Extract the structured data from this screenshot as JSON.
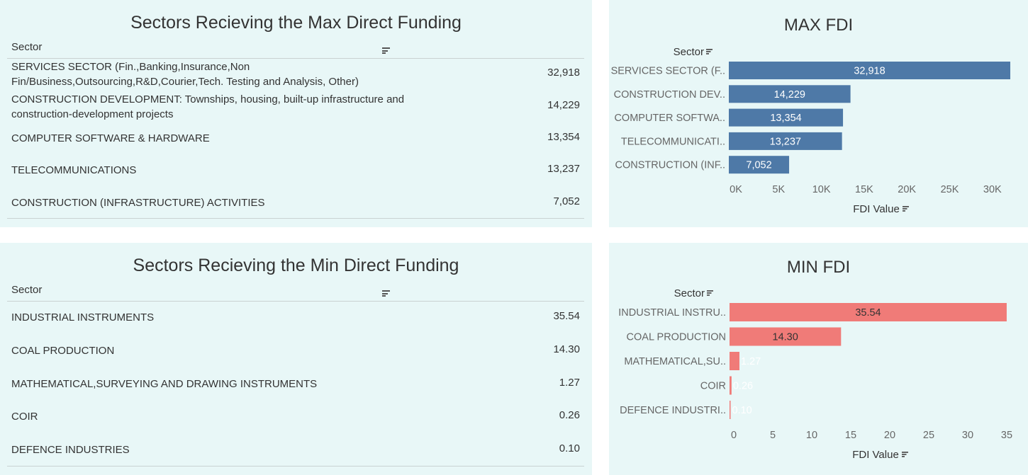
{
  "max_table": {
    "title": "Sectors Recieving the Max Direct Funding",
    "column_header": "Sector",
    "rows": [
      {
        "sector": "SERVICES SECTOR (Fin.,Banking,Insurance,Non Fin/Business,Outsourcing,R&D,Courier,Tech. Testing and Analysis, Other)",
        "value": "32,918"
      },
      {
        "sector": "CONSTRUCTION DEVELOPMENT: Townships, housing, built-up infrastructure and construction-development projects",
        "value": "14,229"
      },
      {
        "sector": "COMPUTER SOFTWARE & HARDWARE",
        "value": "13,354"
      },
      {
        "sector": "TELECOMMUNICATIONS",
        "value": "13,237"
      },
      {
        "sector": "CONSTRUCTION (INFRASTRUCTURE) ACTIVITIES",
        "value": "7,052"
      }
    ]
  },
  "min_table": {
    "title": "Sectors Recieving the Min Direct Funding",
    "column_header": "Sector",
    "rows": [
      {
        "sector": "INDUSTRIAL INSTRUMENTS",
        "value": "35.54"
      },
      {
        "sector": "COAL PRODUCTION",
        "value": "14.30"
      },
      {
        "sector": "MATHEMATICAL,SURVEYING AND DRAWING INSTRUMENTS",
        "value": "1.27"
      },
      {
        "sector": "COIR",
        "value": "0.26"
      },
      {
        "sector": "DEFENCE INDUSTRIES",
        "value": "0.10"
      }
    ]
  },
  "chart_data": [
    {
      "type": "bar",
      "orientation": "horizontal",
      "title": "MAX FDI",
      "ylabel": "Sector",
      "xlabel": "FDI Value",
      "categories": [
        "SERVICES SECTOR (F..",
        "CONSTRUCTION DEV..",
        "COMPUTER SOFTWA..",
        "TELECOMMUNICATI..",
        "CONSTRUCTION (INF.."
      ],
      "values": [
        32918,
        14229,
        13354,
        13237,
        7052
      ],
      "data_labels": [
        "32,918",
        "14,229",
        "13,354",
        "13,237",
        "7,052"
      ],
      "xlim": [
        0,
        33000
      ],
      "xticks": [
        0,
        5000,
        10000,
        15000,
        20000,
        25000,
        30000
      ],
      "xtick_labels": [
        "0K",
        "5K",
        "10K",
        "15K",
        "20K",
        "25K",
        "30K"
      ],
      "bar_color": "#4e79a7",
      "label_color": "#ffffff",
      "grid": false
    },
    {
      "type": "bar",
      "orientation": "horizontal",
      "title": "MIN FDI",
      "ylabel": "Sector",
      "xlabel": "FDI Value",
      "categories": [
        "INDUSTRIAL INSTRU..",
        "COAL PRODUCTION",
        "MATHEMATICAL,SU..",
        "COIR",
        "DEFENCE INDUSTRI.."
      ],
      "values": [
        35.54,
        14.3,
        1.27,
        0.26,
        0.1
      ],
      "data_labels": [
        "35.54",
        "14.30",
        "1.27",
        "0.26",
        "0.10"
      ],
      "xlim": [
        0,
        36
      ],
      "xticks": [
        0,
        5,
        10,
        15,
        20,
        25,
        30,
        35
      ],
      "xtick_labels": [
        "0",
        "5",
        "10",
        "15",
        "20",
        "25",
        "30",
        "35"
      ],
      "bar_color": "#f07b78",
      "label_color": "#333333",
      "grid": false
    }
  ]
}
